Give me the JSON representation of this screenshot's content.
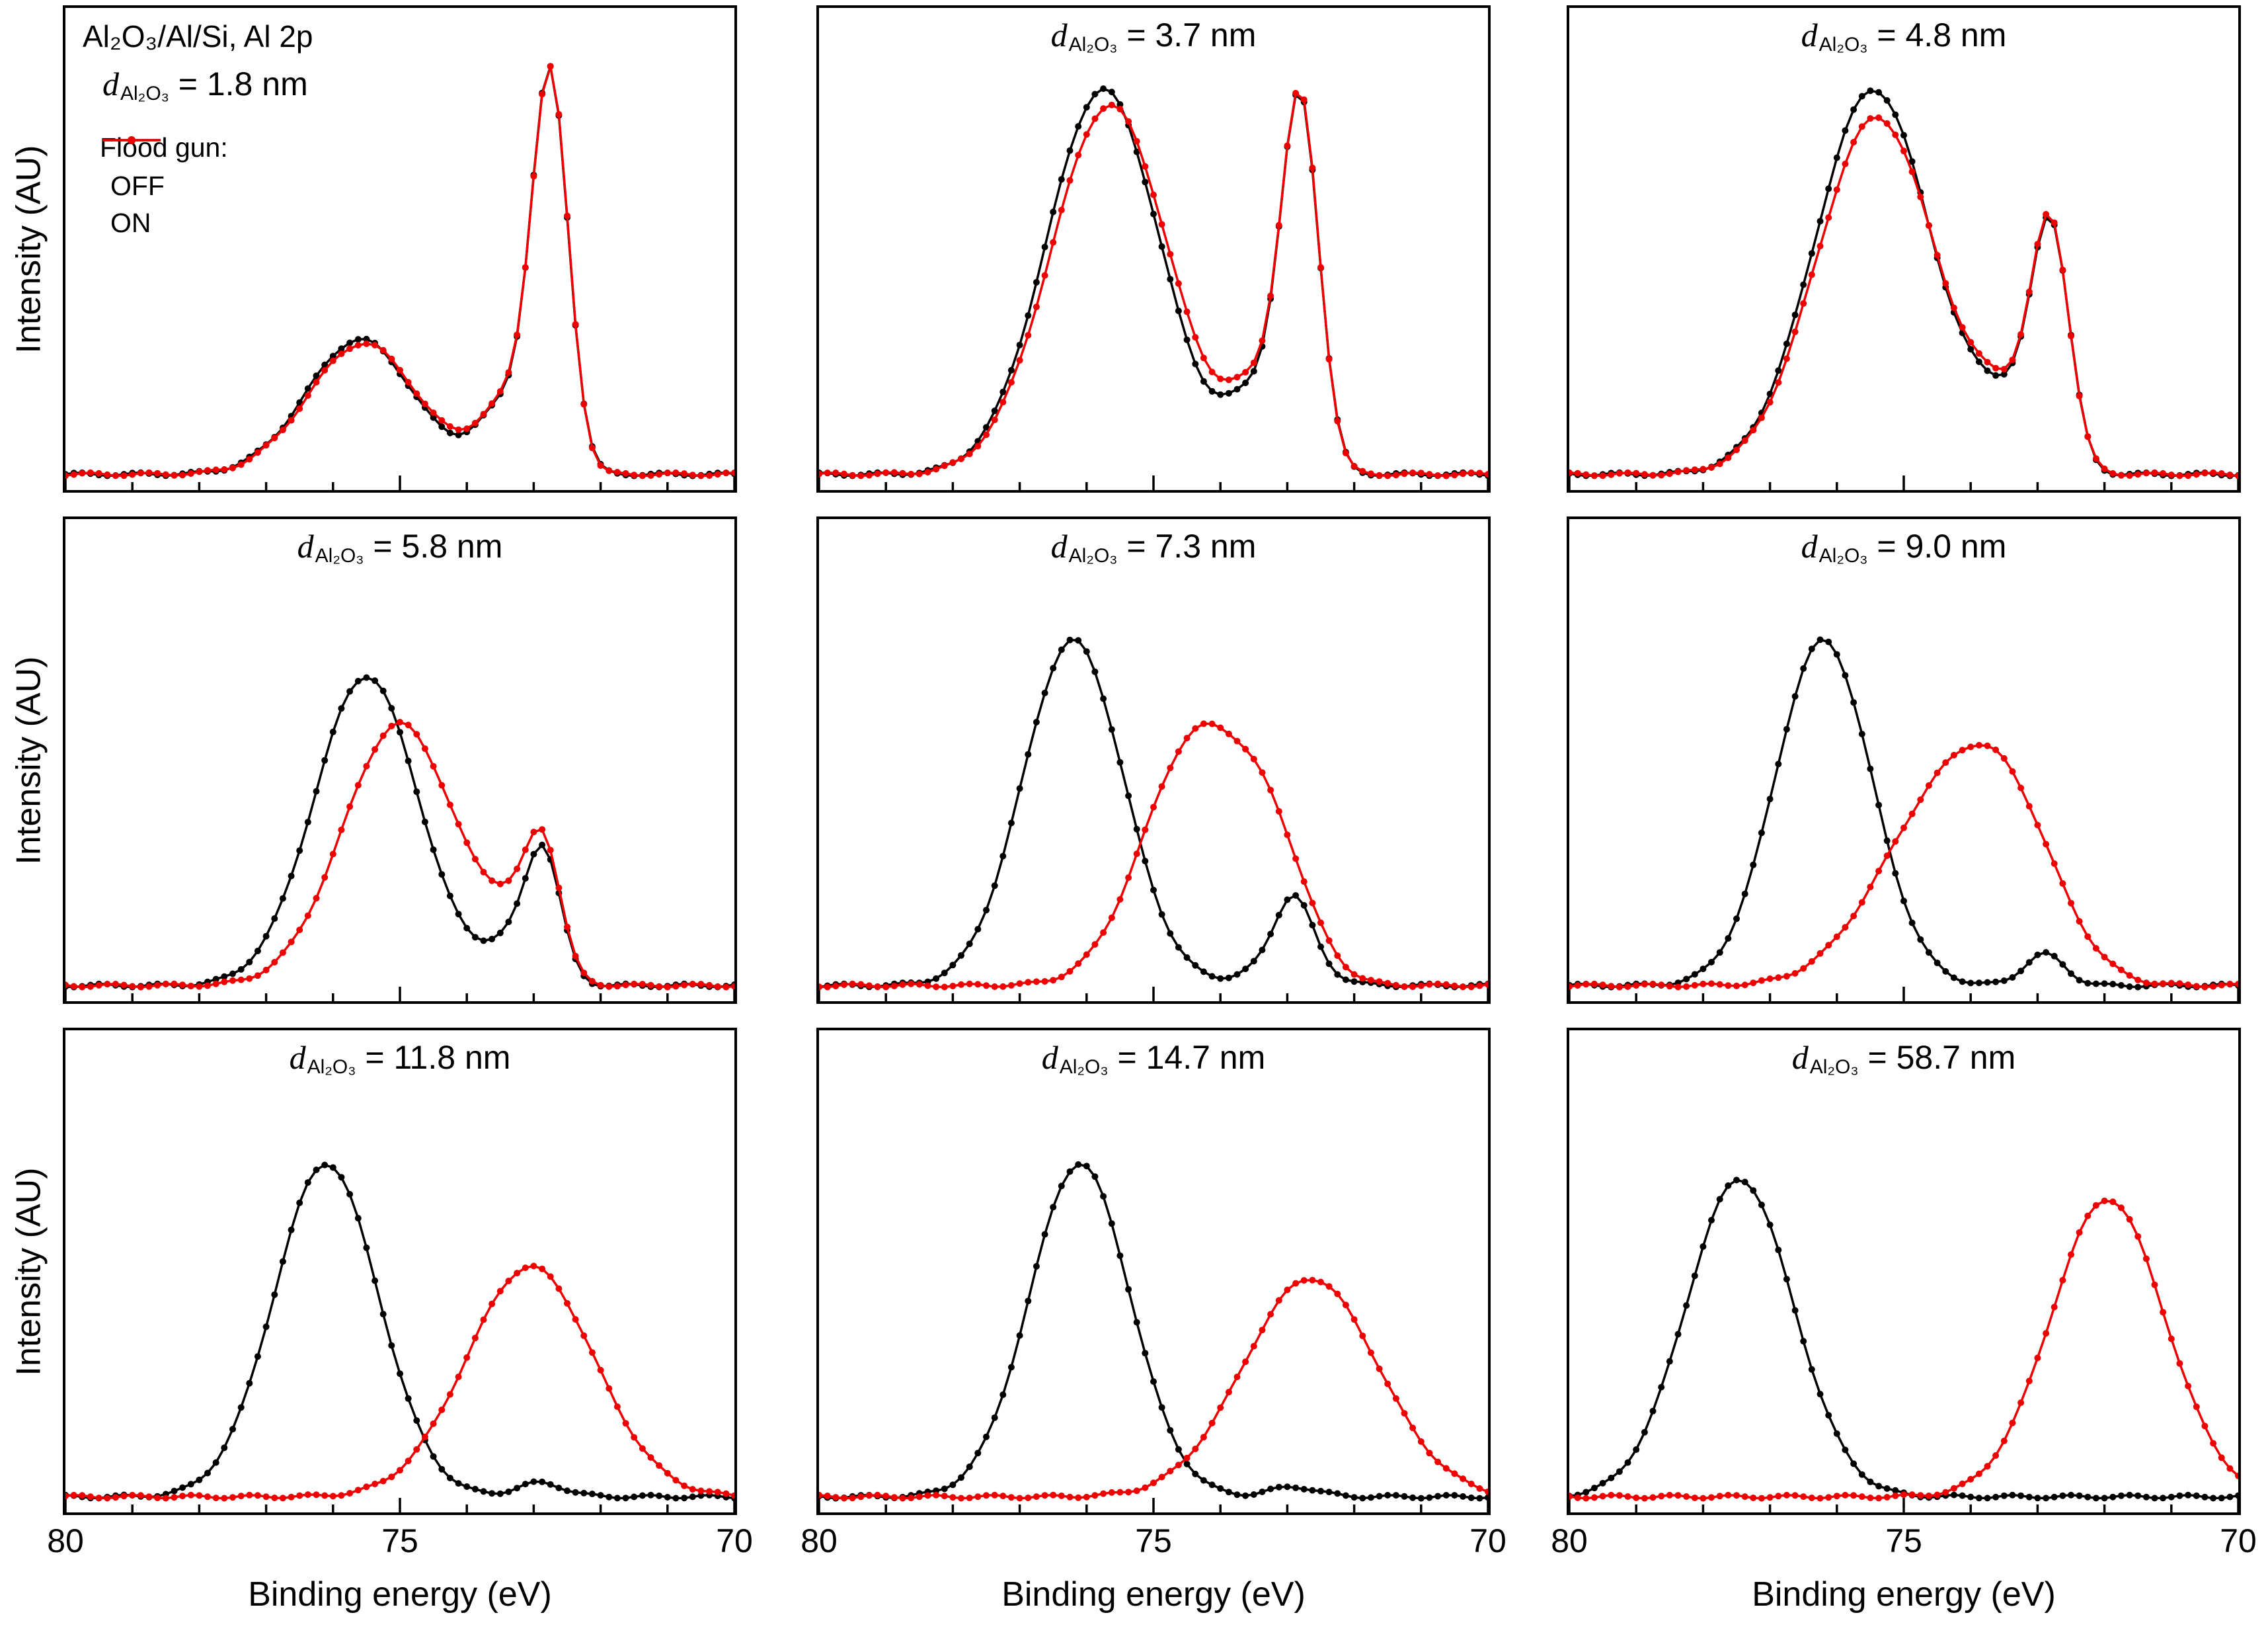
{
  "figure": {
    "panel1_header": "Al₂O₃/Al/Si, Al 2p",
    "legend": {
      "title": "Flood gun:",
      "off_label": "OFF",
      "on_label": "ON"
    },
    "colors": {
      "off": "#000000",
      "on": "#ee0000"
    }
  },
  "chart_data": {
    "type": "line",
    "title": "Al 2p XPS spectra of Al2O3/Al/Si for varying Al2O3 thickness, flood gun OFF vs ON",
    "xlabel": "Binding energy (eV)",
    "ylabel": "Intensity (AU)",
    "x_range": [
      80,
      70
    ],
    "x_ticks": [
      80,
      75,
      70
    ],
    "x_minor_step": 1,
    "x_axis_reversed": true,
    "grid": false,
    "legend_position": "top-left panel 1",
    "series_names": [
      "OFF",
      "ON"
    ],
    "series_colors": {
      "OFF": "#000000",
      "ON": "#ee0000"
    },
    "title_prefix": "d",
    "title_subscript": "Al₂O₃",
    "title_unit": "nm",
    "panels": [
      {
        "thickness": "1.8",
        "off_peaks": [
          [
            75.6,
            0.8,
            0.34
          ],
          [
            73.35,
            0.45,
            0.18
          ],
          [
            72.75,
            0.27,
            0.95
          ]
        ],
        "on_peaks": [
          [
            75.55,
            0.82,
            0.33
          ],
          [
            73.35,
            0.45,
            0.18
          ],
          [
            72.75,
            0.27,
            0.95
          ]
        ]
      },
      {
        "thickness": "3.7",
        "off_peaks": [
          [
            75.75,
            0.85,
            0.97
          ],
          [
            73.4,
            0.45,
            0.2
          ],
          [
            72.8,
            0.28,
            0.88
          ]
        ],
        "on_peaks": [
          [
            75.65,
            0.88,
            0.93
          ],
          [
            73.4,
            0.45,
            0.2
          ],
          [
            72.8,
            0.28,
            0.88
          ]
        ]
      },
      {
        "thickness": "4.8",
        "off_peaks": [
          [
            75.45,
            0.88,
            0.97
          ],
          [
            73.4,
            0.45,
            0.15
          ],
          [
            72.8,
            0.28,
            0.58
          ]
        ],
        "on_peaks": [
          [
            75.4,
            0.9,
            0.9
          ],
          [
            73.4,
            0.45,
            0.15
          ],
          [
            72.8,
            0.28,
            0.58
          ]
        ]
      },
      {
        "thickness": "5.8",
        "off_peaks": [
          [
            75.5,
            0.78,
            0.78
          ],
          [
            73.3,
            0.4,
            0.1
          ],
          [
            72.85,
            0.26,
            0.3
          ]
        ],
        "on_peaks": [
          [
            75.0,
            0.85,
            0.66
          ],
          [
            73.3,
            0.4,
            0.12
          ],
          [
            72.85,
            0.26,
            0.3
          ]
        ]
      },
      {
        "thickness": "7.3",
        "off_peaks": [
          [
            76.2,
            0.75,
            0.87
          ],
          [
            73.0,
            0.5,
            0.07
          ],
          [
            72.9,
            0.27,
            0.16
          ]
        ],
        "on_peaks": [
          [
            74.35,
            0.8,
            0.62
          ],
          [
            73.2,
            0.55,
            0.25
          ]
        ]
      },
      {
        "thickness": "9.0",
        "off_peaks": [
          [
            76.2,
            0.72,
            0.87
          ],
          [
            72.9,
            0.3,
            0.08
          ]
        ],
        "on_peaks": [
          [
            74.5,
            0.95,
            0.42
          ],
          [
            73.4,
            0.75,
            0.33
          ]
        ]
      },
      {
        "thickness": "11.8",
        "off_peaks": [
          [
            76.1,
            0.78,
            0.84
          ],
          [
            72.9,
            0.35,
            0.035
          ]
        ],
        "on_peaks": [
          [
            73.05,
            0.95,
            0.58
          ]
        ]
      },
      {
        "thickness": "14.7",
        "off_peaks": [
          [
            76.1,
            0.75,
            0.84
          ],
          [
            72.9,
            0.35,
            0.025
          ]
        ],
        "on_peaks": [
          [
            72.65,
            1.0,
            0.55
          ]
        ]
      },
      {
        "thickness": "58.7",
        "off_peaks": [
          [
            77.45,
            0.8,
            0.8
          ]
        ],
        "on_peaks": [
          [
            71.95,
            0.85,
            0.75
          ]
        ]
      }
    ]
  }
}
